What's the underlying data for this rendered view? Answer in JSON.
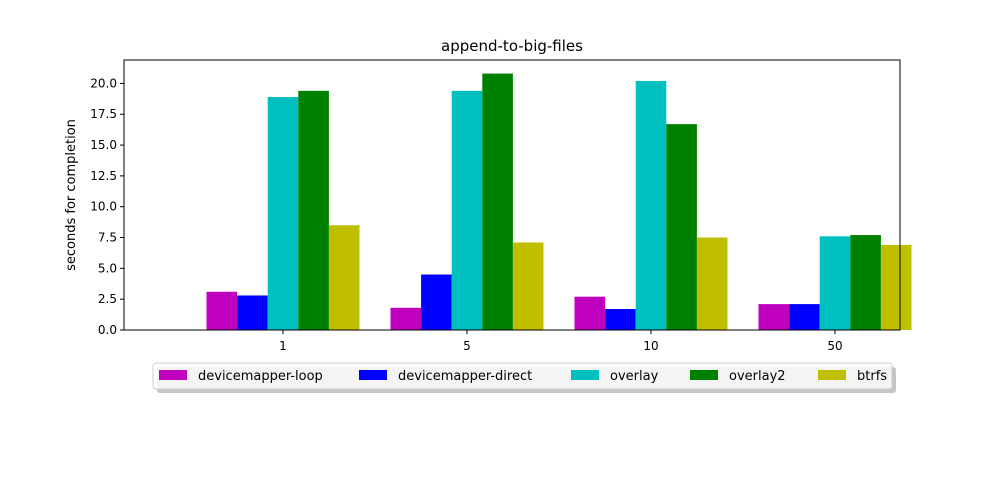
{
  "chart_data": {
    "type": "bar",
    "title": "append-to-big-files",
    "xlabel": "",
    "ylabel": "seconds for completion",
    "categories": [
      "1",
      "5",
      "10",
      "50"
    ],
    "ylim": [
      0,
      21.9
    ],
    "yticks": [
      "0.0",
      "2.5",
      "5.0",
      "7.5",
      "10.0",
      "12.5",
      "15.0",
      "17.5",
      "20.0"
    ],
    "grid": false,
    "legend_position": "bottom-center",
    "series": [
      {
        "name": "devicemapper-loop",
        "color": "#bf00bf",
        "values": [
          3.1,
          1.8,
          2.7,
          2.1
        ]
      },
      {
        "name": "devicemapper-direct",
        "color": "#0000ff",
        "values": [
          2.8,
          4.5,
          1.7,
          2.1
        ]
      },
      {
        "name": "overlay",
        "color": "#00bfbf",
        "values": [
          18.9,
          19.4,
          20.2,
          7.6
        ]
      },
      {
        "name": "overlay2",
        "color": "#008000",
        "values": [
          19.4,
          20.8,
          16.7,
          7.7
        ]
      },
      {
        "name": "btrfs",
        "color": "#bfbf00",
        "values": [
          8.5,
          7.1,
          7.5,
          6.9
        ]
      }
    ]
  }
}
